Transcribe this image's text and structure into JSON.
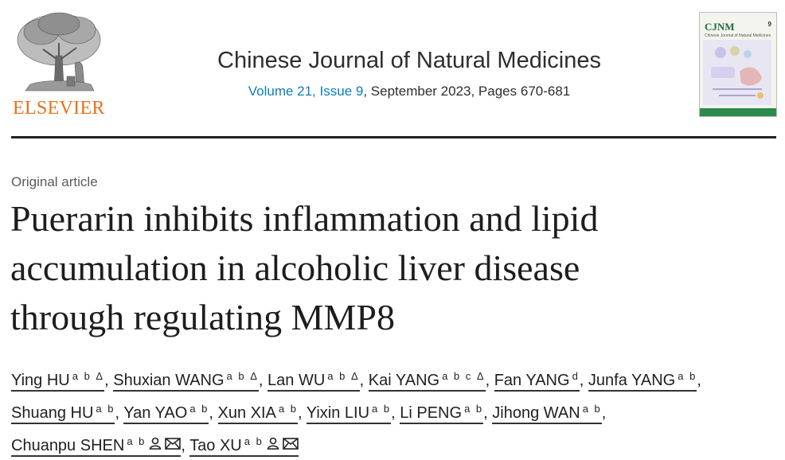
{
  "publisher": {
    "name": "ELSEVIER",
    "brand_color": "#e9711c"
  },
  "journal": {
    "title": "Chinese Journal of Natural Medicines",
    "volume_link": "Volume 21, Issue 9",
    "details": ", September 2023, Pages 670-681",
    "link_color": "#0c7dbb"
  },
  "cover": {
    "abbr": "CJNM",
    "issue": "9",
    "subtitle": "Chinese Journal of Natural Medicines"
  },
  "article": {
    "type": "Original article",
    "title_lines": [
      "Puerarin inhibits inflammation and lipid",
      "accumulation in alcoholic liver disease",
      "through regulating MMP8"
    ]
  },
  "authors": [
    {
      "name": "Ying HU",
      "aff": "a b Δ",
      "sep": ", "
    },
    {
      "name": "Shuxian WANG",
      "aff": "a b Δ",
      "sep": ", "
    },
    {
      "name": "Lan WU",
      "aff": "a b Δ",
      "sep": ", "
    },
    {
      "name": "Kai YANG",
      "aff": "a b c Δ",
      "sep": ", "
    },
    {
      "name": "Fan YANG",
      "aff": "d",
      "sep": ", "
    },
    {
      "name": "Junfa YANG",
      "aff": "a b",
      "sep": ","
    },
    {
      "name": "Shuang HU",
      "aff": "a b",
      "sep": ", "
    },
    {
      "name": "Yan YAO",
      "aff": "a b",
      "sep": ", "
    },
    {
      "name": "Xun XIA",
      "aff": "a b",
      "sep": ", "
    },
    {
      "name": "Yixin LIU",
      "aff": "a b",
      "sep": ", "
    },
    {
      "name": "Li PENG",
      "aff": "a b",
      "sep": ", "
    },
    {
      "name": "Jihong WAN",
      "aff": "a b",
      "sep": ","
    },
    {
      "name": "Chuanpu SHEN",
      "aff": "a b",
      "sep": ", "
    },
    {
      "name": "Tao XU",
      "aff": "a b",
      "sep": ""
    }
  ]
}
